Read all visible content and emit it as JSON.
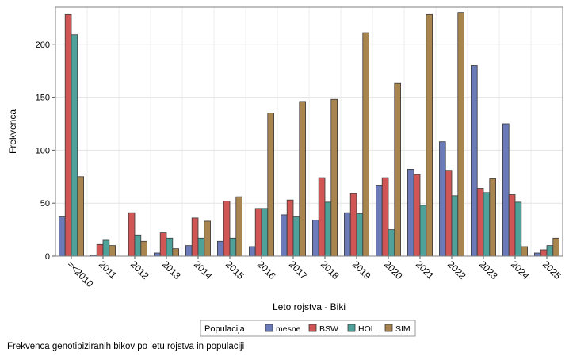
{
  "chart_data": {
    "type": "bar",
    "ylabel": "Frekvenca",
    "xlabel": "Leto rojstva - Biki",
    "categories": [
      "=<2010",
      "2011",
      "2012",
      "2013",
      "2014",
      "2015",
      "2016",
      "2017",
      "2018",
      "2019",
      "2020",
      "2021",
      "2022",
      "2023",
      "2024",
      "2025"
    ],
    "ylim": [
      0,
      235
    ],
    "yticks": [
      0,
      50,
      100,
      150,
      200
    ],
    "grid": true,
    "legend": {
      "title": "Populacija",
      "position": "bottom-center"
    },
    "series": [
      {
        "name": "mesne",
        "color": "#6B7AB8",
        "values": [
          37,
          1,
          0,
          3,
          10,
          14,
          9,
          39,
          34,
          41,
          67,
          82,
          108,
          180,
          125,
          3
        ]
      },
      {
        "name": "BSW",
        "color": "#D05656",
        "values": [
          228,
          11,
          41,
          22,
          36,
          52,
          45,
          53,
          74,
          59,
          74,
          77,
          81,
          64,
          58,
          6
        ]
      },
      {
        "name": "HOL",
        "color": "#4FA29A",
        "values": [
          209,
          15,
          20,
          17,
          17,
          17,
          45,
          37,
          51,
          40,
          25,
          48,
          57,
          60,
          51,
          10
        ]
      },
      {
        "name": "SIM",
        "color": "#A8844F",
        "values": [
          75,
          10,
          14,
          7,
          33,
          56,
          135,
          146,
          148,
          211,
          163,
          228,
          230,
          73,
          9,
          17
        ]
      }
    ]
  },
  "caption": "Frekvenca genotipiziranih bikov po letu rojstva in populaciji"
}
